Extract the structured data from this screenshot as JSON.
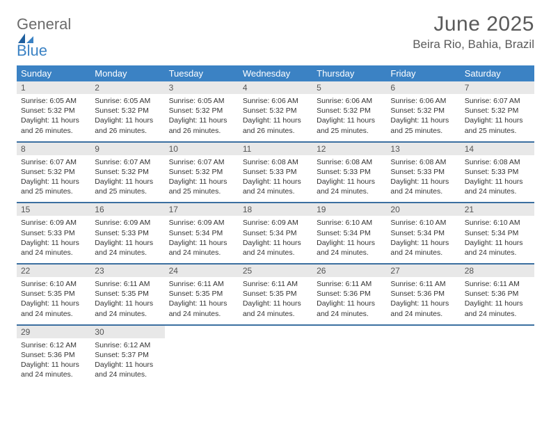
{
  "logo": {
    "line1": "General",
    "line2": "Blue"
  },
  "title": "June 2025",
  "location": "Beira Rio, Bahia, Brazil",
  "colors": {
    "header_bg": "#3b82c4",
    "header_text": "#ffffff",
    "row_divider": "#3b6fa0",
    "daynum_bg": "#e8e8e8",
    "text": "#333333",
    "title_color": "#5a5a5a"
  },
  "weekdays": [
    "Sunday",
    "Monday",
    "Tuesday",
    "Wednesday",
    "Thursday",
    "Friday",
    "Saturday"
  ],
  "weeks": [
    [
      {
        "n": "1",
        "sr": "Sunrise: 6:05 AM",
        "ss": "Sunset: 5:32 PM",
        "d1": "Daylight: 11 hours",
        "d2": "and 26 minutes."
      },
      {
        "n": "2",
        "sr": "Sunrise: 6:05 AM",
        "ss": "Sunset: 5:32 PM",
        "d1": "Daylight: 11 hours",
        "d2": "and 26 minutes."
      },
      {
        "n": "3",
        "sr": "Sunrise: 6:05 AM",
        "ss": "Sunset: 5:32 PM",
        "d1": "Daylight: 11 hours",
        "d2": "and 26 minutes."
      },
      {
        "n": "4",
        "sr": "Sunrise: 6:06 AM",
        "ss": "Sunset: 5:32 PM",
        "d1": "Daylight: 11 hours",
        "d2": "and 26 minutes."
      },
      {
        "n": "5",
        "sr": "Sunrise: 6:06 AM",
        "ss": "Sunset: 5:32 PM",
        "d1": "Daylight: 11 hours",
        "d2": "and 25 minutes."
      },
      {
        "n": "6",
        "sr": "Sunrise: 6:06 AM",
        "ss": "Sunset: 5:32 PM",
        "d1": "Daylight: 11 hours",
        "d2": "and 25 minutes."
      },
      {
        "n": "7",
        "sr": "Sunrise: 6:07 AM",
        "ss": "Sunset: 5:32 PM",
        "d1": "Daylight: 11 hours",
        "d2": "and 25 minutes."
      }
    ],
    [
      {
        "n": "8",
        "sr": "Sunrise: 6:07 AM",
        "ss": "Sunset: 5:32 PM",
        "d1": "Daylight: 11 hours",
        "d2": "and 25 minutes."
      },
      {
        "n": "9",
        "sr": "Sunrise: 6:07 AM",
        "ss": "Sunset: 5:32 PM",
        "d1": "Daylight: 11 hours",
        "d2": "and 25 minutes."
      },
      {
        "n": "10",
        "sr": "Sunrise: 6:07 AM",
        "ss": "Sunset: 5:32 PM",
        "d1": "Daylight: 11 hours",
        "d2": "and 25 minutes."
      },
      {
        "n": "11",
        "sr": "Sunrise: 6:08 AM",
        "ss": "Sunset: 5:33 PM",
        "d1": "Daylight: 11 hours",
        "d2": "and 24 minutes."
      },
      {
        "n": "12",
        "sr": "Sunrise: 6:08 AM",
        "ss": "Sunset: 5:33 PM",
        "d1": "Daylight: 11 hours",
        "d2": "and 24 minutes."
      },
      {
        "n": "13",
        "sr": "Sunrise: 6:08 AM",
        "ss": "Sunset: 5:33 PM",
        "d1": "Daylight: 11 hours",
        "d2": "and 24 minutes."
      },
      {
        "n": "14",
        "sr": "Sunrise: 6:08 AM",
        "ss": "Sunset: 5:33 PM",
        "d1": "Daylight: 11 hours",
        "d2": "and 24 minutes."
      }
    ],
    [
      {
        "n": "15",
        "sr": "Sunrise: 6:09 AM",
        "ss": "Sunset: 5:33 PM",
        "d1": "Daylight: 11 hours",
        "d2": "and 24 minutes."
      },
      {
        "n": "16",
        "sr": "Sunrise: 6:09 AM",
        "ss": "Sunset: 5:33 PM",
        "d1": "Daylight: 11 hours",
        "d2": "and 24 minutes."
      },
      {
        "n": "17",
        "sr": "Sunrise: 6:09 AM",
        "ss": "Sunset: 5:34 PM",
        "d1": "Daylight: 11 hours",
        "d2": "and 24 minutes."
      },
      {
        "n": "18",
        "sr": "Sunrise: 6:09 AM",
        "ss": "Sunset: 5:34 PM",
        "d1": "Daylight: 11 hours",
        "d2": "and 24 minutes."
      },
      {
        "n": "19",
        "sr": "Sunrise: 6:10 AM",
        "ss": "Sunset: 5:34 PM",
        "d1": "Daylight: 11 hours",
        "d2": "and 24 minutes."
      },
      {
        "n": "20",
        "sr": "Sunrise: 6:10 AM",
        "ss": "Sunset: 5:34 PM",
        "d1": "Daylight: 11 hours",
        "d2": "and 24 minutes."
      },
      {
        "n": "21",
        "sr": "Sunrise: 6:10 AM",
        "ss": "Sunset: 5:34 PM",
        "d1": "Daylight: 11 hours",
        "d2": "and 24 minutes."
      }
    ],
    [
      {
        "n": "22",
        "sr": "Sunrise: 6:10 AM",
        "ss": "Sunset: 5:35 PM",
        "d1": "Daylight: 11 hours",
        "d2": "and 24 minutes."
      },
      {
        "n": "23",
        "sr": "Sunrise: 6:11 AM",
        "ss": "Sunset: 5:35 PM",
        "d1": "Daylight: 11 hours",
        "d2": "and 24 minutes."
      },
      {
        "n": "24",
        "sr": "Sunrise: 6:11 AM",
        "ss": "Sunset: 5:35 PM",
        "d1": "Daylight: 11 hours",
        "d2": "and 24 minutes."
      },
      {
        "n": "25",
        "sr": "Sunrise: 6:11 AM",
        "ss": "Sunset: 5:35 PM",
        "d1": "Daylight: 11 hours",
        "d2": "and 24 minutes."
      },
      {
        "n": "26",
        "sr": "Sunrise: 6:11 AM",
        "ss": "Sunset: 5:36 PM",
        "d1": "Daylight: 11 hours",
        "d2": "and 24 minutes."
      },
      {
        "n": "27",
        "sr": "Sunrise: 6:11 AM",
        "ss": "Sunset: 5:36 PM",
        "d1": "Daylight: 11 hours",
        "d2": "and 24 minutes."
      },
      {
        "n": "28",
        "sr": "Sunrise: 6:11 AM",
        "ss": "Sunset: 5:36 PM",
        "d1": "Daylight: 11 hours",
        "d2": "and 24 minutes."
      }
    ],
    [
      {
        "n": "29",
        "sr": "Sunrise: 6:12 AM",
        "ss": "Sunset: 5:36 PM",
        "d1": "Daylight: 11 hours",
        "d2": "and 24 minutes."
      },
      {
        "n": "30",
        "sr": "Sunrise: 6:12 AM",
        "ss": "Sunset: 5:37 PM",
        "d1": "Daylight: 11 hours",
        "d2": "and 24 minutes."
      },
      null,
      null,
      null,
      null,
      null
    ]
  ]
}
